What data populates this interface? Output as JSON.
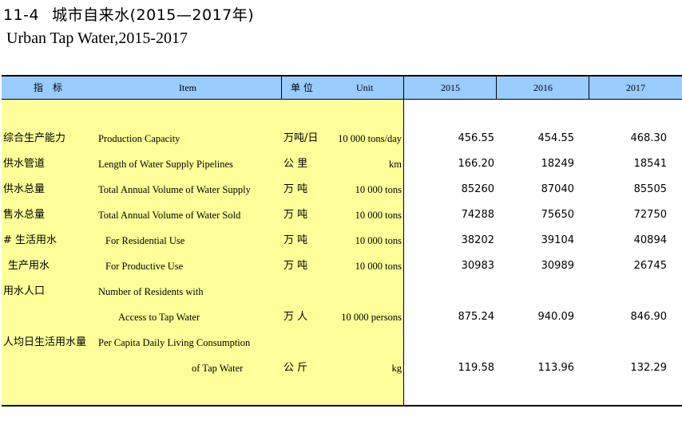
{
  "title": {
    "number": "11-4",
    "text": "城市自来水(2015—2017年)"
  },
  "subtitle": "Urban Tap Water,2015-2017",
  "header": {
    "indicator": "指　标",
    "item": "Item",
    "unit_zh": "单 位",
    "unit_en": "Unit",
    "y2015": "2015",
    "y2016": "2016",
    "y2017": "2017"
  },
  "rows": [
    {
      "zh": "综合生产能力",
      "en": "Production Capacity",
      "unit_zh": "万吨/日",
      "unit_en": "10 000 tons/day",
      "v2015": "456.55",
      "v2016": "454.55",
      "v2017": "468.30"
    },
    {
      "zh": "供水管道",
      "en": "Length of Water Supply Pipelines",
      "unit_zh": "公 里",
      "unit_en": "km",
      "v2015": "166.20",
      "v2016": "18249",
      "v2017": "18541"
    },
    {
      "zh": "供水总量",
      "en": "Total Annual Volume of Water Supply",
      "unit_zh": "万 吨",
      "unit_en": "10 000 tons",
      "v2015": "85260",
      "v2016": "87040",
      "v2017": "85505"
    },
    {
      "zh": "售水总量",
      "en": "Total Annual Volume of Water Sold",
      "unit_zh": "万 吨",
      "unit_en": "10 000 tons",
      "v2015": "74288",
      "v2016": "75650",
      "v2017": "72750"
    },
    {
      "zh": "# 生活用水",
      "en": "For Residential Use",
      "unit_zh": "万 吨",
      "unit_en": "10 000 tons",
      "v2015": "38202",
      "v2016": "39104",
      "v2017": "40894"
    },
    {
      "zh": "生产用水",
      "en": "For Productive Use",
      "unit_zh": "万 吨",
      "unit_en": "10 000 tons",
      "v2015": "30983",
      "v2016": "30989",
      "v2017": "26745"
    },
    {
      "zh": "用水人口",
      "en": "Number of Residents with",
      "unit_zh": "",
      "unit_en": "",
      "v2015": "",
      "v2016": "",
      "v2017": ""
    },
    {
      "zh": "",
      "en": "Access to Tap Water",
      "unit_zh": "万 人",
      "unit_en": "10 000 persons",
      "v2015": "875.24",
      "v2016": "940.09",
      "v2017": "846.90"
    },
    {
      "zh": "人均日生活用水量",
      "en": "Per Capita Daily Living Consumption",
      "unit_zh": "",
      "unit_en": "",
      "v2015": "",
      "v2016": "",
      "v2017": ""
    },
    {
      "zh": "",
      "en": "of Tap Water",
      "unit_zh": "公 斤",
      "unit_en": "kg",
      "v2015": "119.58",
      "v2016": "113.96",
      "v2017": "132.29"
    }
  ]
}
